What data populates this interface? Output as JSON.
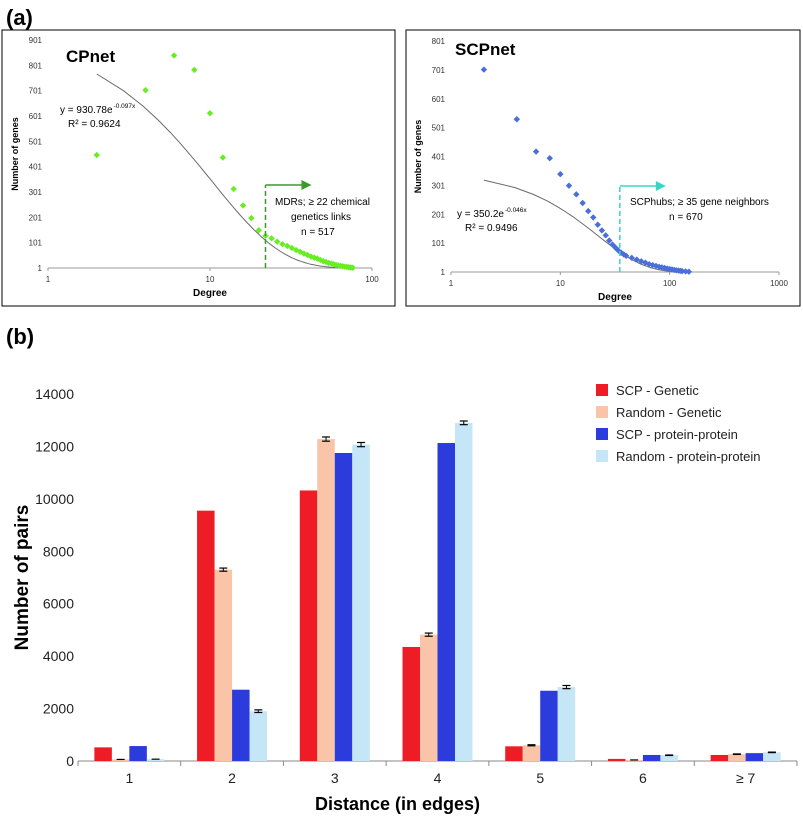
{
  "panel_labels": {
    "a": "(a)",
    "b": "(b)"
  },
  "colors": {
    "cpnet_points": "#66ee22",
    "cpnet_arrow": "#3a9a2a",
    "scpnet_points": "#4a6fd8",
    "scpnet_arrow": "#36d6c6",
    "fit_line": "#6a6a6a",
    "scp_genetic": "#ee1c24",
    "random_genetic": "#f9c4a8",
    "scp_pp": "#2b3bdc",
    "random_pp": "#c4e6f6"
  },
  "chart_data": [
    {
      "id": "cpnet",
      "type": "scatter",
      "title": "CPnet",
      "xlabel": "Degree",
      "ylabel": "Number of genes",
      "x_scale": "log",
      "xlim": [
        1,
        100
      ],
      "ylim": [
        1,
        901
      ],
      "x_ticks": [
        "1",
        "10",
        "100"
      ],
      "y_ticks": [
        "1",
        "101",
        "201",
        "301",
        "401",
        "501",
        "601",
        "701",
        "801",
        "901"
      ],
      "equation": "y = 930.78e",
      "equation_exp": "-0.097x",
      "r2": "R² = 0.9624",
      "fit": {
        "a": 930.78,
        "b": -0.097
      },
      "threshold": 22,
      "annotation": [
        "MDRs; ≥ 22 chemical",
        "genetics links",
        "n = 517"
      ],
      "points": [
        [
          2,
          447
        ],
        [
          4,
          703
        ],
        [
          6,
          840
        ],
        [
          8,
          783
        ],
        [
          10,
          612
        ],
        [
          12,
          437
        ],
        [
          14,
          313
        ],
        [
          16,
          248
        ],
        [
          18,
          198
        ],
        [
          20,
          150
        ],
        [
          22,
          128
        ],
        [
          24,
          118
        ],
        [
          26,
          105
        ],
        [
          28,
          95
        ],
        [
          30,
          88
        ],
        [
          32,
          80
        ],
        [
          34,
          72
        ],
        [
          36,
          65
        ],
        [
          38,
          58
        ],
        [
          40,
          52
        ],
        [
          42,
          46
        ],
        [
          44,
          42
        ],
        [
          46,
          38
        ],
        [
          48,
          33
        ],
        [
          50,
          28
        ],
        [
          52,
          25
        ],
        [
          54,
          21
        ],
        [
          56,
          19
        ],
        [
          58,
          16
        ],
        [
          60,
          13
        ],
        [
          62,
          11
        ],
        [
          64,
          9
        ],
        [
          66,
          8
        ],
        [
          68,
          6
        ],
        [
          70,
          5
        ],
        [
          72,
          4
        ],
        [
          74,
          3
        ],
        [
          76,
          2
        ]
      ]
    },
    {
      "id": "scpnet",
      "type": "scatter",
      "title": "SCPnet",
      "xlabel": "Degree",
      "ylabel": "Number of genes",
      "x_scale": "log",
      "xlim": [
        1,
        1000
      ],
      "ylim": [
        1,
        801
      ],
      "x_ticks": [
        "1",
        "10",
        "100",
        "1000"
      ],
      "y_ticks": [
        "1",
        "101",
        "201",
        "301",
        "401",
        "501",
        "601",
        "701",
        "801"
      ],
      "equation": "y = 350.2e",
      "equation_exp": "-0.046x",
      "r2": "R² = 0.9496",
      "fit": {
        "a": 350.2,
        "b": -0.046
      },
      "threshold": 35,
      "annotation": [
        "SCPhubs; ≥ 35 gene neighbors",
        "n = 670"
      ],
      "points": [
        [
          2,
          702
        ],
        [
          4,
          530
        ],
        [
          6,
          418
        ],
        [
          8,
          395
        ],
        [
          10,
          340
        ],
        [
          12,
          300
        ],
        [
          14,
          270
        ],
        [
          16,
          240
        ],
        [
          18,
          212
        ],
        [
          20,
          190
        ],
        [
          22,
          165
        ],
        [
          24,
          145
        ],
        [
          26,
          128
        ],
        [
          28,
          110
        ],
        [
          30,
          96
        ],
        [
          32,
          85
        ],
        [
          34,
          75
        ],
        [
          36,
          68
        ],
        [
          38,
          62
        ],
        [
          40,
          57
        ],
        [
          45,
          50
        ],
        [
          50,
          44
        ],
        [
          55,
          38
        ],
        [
          60,
          33
        ],
        [
          65,
          28
        ],
        [
          70,
          25
        ],
        [
          75,
          22
        ],
        [
          80,
          19
        ],
        [
          85,
          17
        ],
        [
          90,
          15
        ],
        [
          95,
          13
        ],
        [
          100,
          11
        ],
        [
          105,
          10
        ],
        [
          110,
          8
        ],
        [
          115,
          7
        ],
        [
          120,
          6
        ],
        [
          125,
          5
        ],
        [
          130,
          4
        ],
        [
          140,
          3
        ],
        [
          150,
          2
        ]
      ]
    },
    {
      "id": "distance",
      "type": "bar",
      "xlabel": "Distance (in edges)",
      "ylabel": "Number of pairs",
      "ylim": [
        0,
        14000
      ],
      "y_ticks": [
        "0",
        "2000",
        "4000",
        "6000",
        "8000",
        "10000",
        "12000",
        "14000"
      ],
      "categories": [
        "1",
        "2",
        "3",
        "4",
        "5",
        "6",
        "≥ 7"
      ],
      "series": [
        {
          "name": "SCP - Genetic",
          "color_key": "scp_genetic",
          "values": [
            520,
            9550,
            10320,
            4350,
            560,
            80,
            230
          ],
          "errors": null
        },
        {
          "name": "Random - Genetic",
          "color_key": "random_genetic",
          "values": [
            60,
            7300,
            12280,
            4820,
            600,
            40,
            260
          ],
          "errors": [
            0,
            60,
            80,
            60,
            20,
            0,
            10
          ]
        },
        {
          "name": "SCP - protein-protein",
          "color_key": "scp_pp",
          "values": [
            570,
            2720,
            11750,
            12130,
            2680,
            230,
            300
          ],
          "errors": null
        },
        {
          "name": "Random - protein-protein",
          "color_key": "random_pp",
          "values": [
            70,
            1900,
            12070,
            12900,
            2820,
            220,
            330
          ],
          "errors": [
            0,
            50,
            80,
            70,
            60,
            10,
            10
          ]
        }
      ]
    }
  ]
}
